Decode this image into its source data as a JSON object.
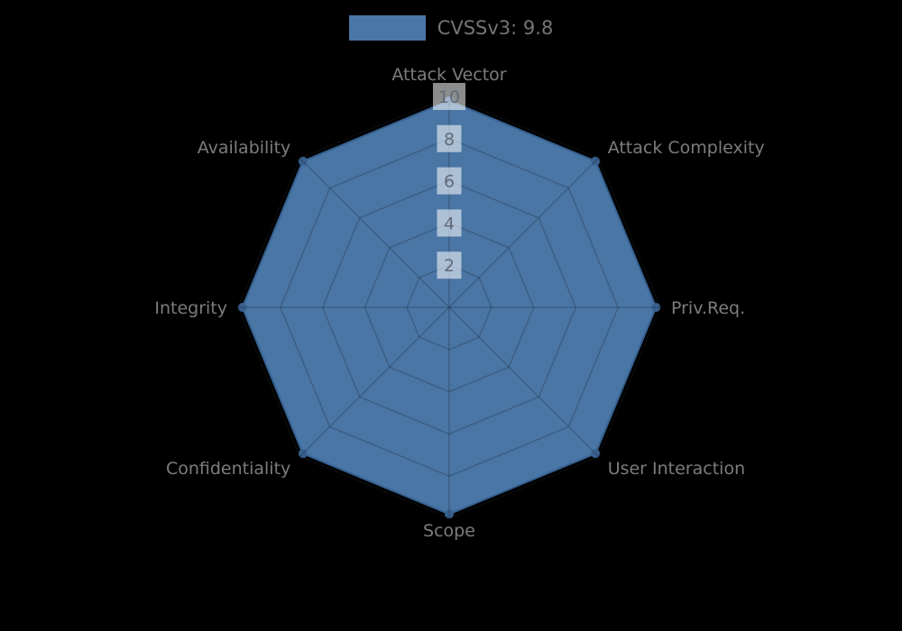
{
  "page": {
    "background_color": "#000000"
  },
  "legend": {
    "label": "CVSSv3: 9.8",
    "swatch_color": "#4a76a5"
  },
  "chart_data": {
    "type": "radar",
    "title": "CVSSv3: 9.8",
    "axes": [
      "Attack Vector",
      "Attack Complexity",
      "Priv.Req.",
      "User Interaction",
      "Scope",
      "Confidentiality",
      "Integrity",
      "Availability"
    ],
    "series": [
      {
        "name": "CVSSv3: 9.8",
        "values": [
          9.8,
          9.8,
          9.8,
          9.8,
          9.8,
          9.8,
          9.8,
          9.8
        ]
      }
    ],
    "max": 10,
    "min": 0,
    "ticks": [
      2,
      4,
      6,
      8,
      10
    ],
    "grid": "on",
    "legend_position": "top",
    "colors": {
      "fill": "#4a76a5",
      "stroke": "#356191",
      "point": "#39618f",
      "grid_line": "rgba(25,35,50,0.28)",
      "axis_label": "#7c7c7c",
      "tick_label": "#606b7a",
      "tick_backdrop": "rgba(255,255,255,0.55)"
    },
    "layout": {
      "center_x": 498,
      "center_y": 341,
      "pixels_per_unit": 23.4,
      "axis_label_font_px": 19,
      "tick_label_font_px": 19
    }
  }
}
